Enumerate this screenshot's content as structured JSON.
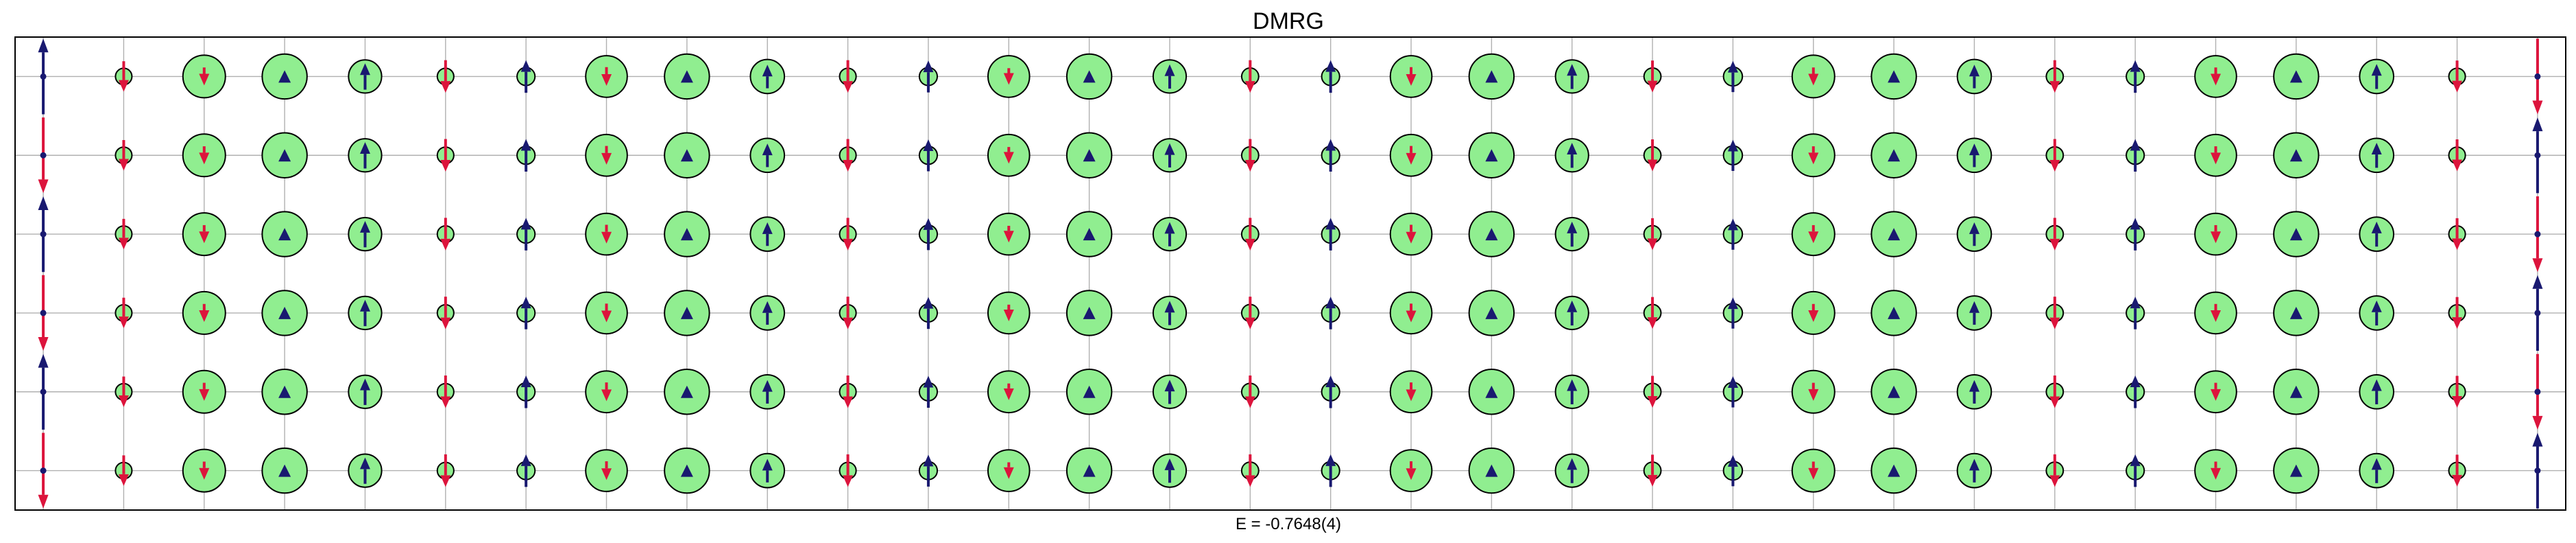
{
  "chart_data": {
    "type": "scatter",
    "title": "DMRG",
    "footer": "E = -0.7648(4)",
    "grid": true,
    "xlim": [
      -0.35,
      31.35
    ],
    "ylim": [
      -0.5,
      5.5
    ],
    "columns": 32,
    "rows": 6,
    "colors": {
      "up_arrow": "#191970",
      "down_arrow": "#dc143c",
      "circle_fill": "#90ee90",
      "circle_edge": "#000000",
      "grid": "#b0b0b0",
      "frame": "#000000",
      "site_dot": "#191970"
    },
    "row_spin_signs": [
      [
        -1,
        1
      ],
      [
        1,
        -1
      ],
      [
        -1,
        1
      ],
      [
        1,
        -1
      ],
      [
        -1,
        1
      ],
      [
        1,
        -1
      ]
    ],
    "column_pattern": [
      {
        "x": 0,
        "m": 0.0,
        "h": 0.98,
        "n": 0.0
      },
      {
        "x": 1,
        "m": 0.44,
        "h": 0.92,
        "n": 0.3
      },
      {
        "x": 2,
        "m": 0.26,
        "h": 0.82,
        "n": 0.9
      },
      {
        "x": 3,
        "m": -0.11,
        "h": 0.65,
        "n": 0.95
      },
      {
        "x": 4,
        "m": -0.38,
        "h": 0.98,
        "n": 0.7
      },
      {
        "x": 5,
        "m": 0.47,
        "h": 0.96,
        "n": 0.35
      },
      {
        "x": 6,
        "m": -0.47,
        "h": 0.98,
        "n": 0.38
      },
      {
        "x": 7,
        "m": 0.27,
        "h": 0.83,
        "n": 0.88
      },
      {
        "x": 8,
        "m": -0.11,
        "h": 0.65,
        "n": 0.95
      },
      {
        "x": 9,
        "m": -0.34,
        "h": 0.98,
        "n": 0.72
      },
      {
        "x": 10,
        "m": 0.47,
        "h": 0.97,
        "n": 0.35
      },
      {
        "x": 11,
        "m": -0.46,
        "h": 0.97,
        "n": 0.38
      },
      {
        "x": 12,
        "m": 0.24,
        "h": 0.8,
        "n": 0.88
      },
      {
        "x": 13,
        "m": -0.11,
        "h": 0.65,
        "n": 0.95
      },
      {
        "x": 14,
        "m": -0.35,
        "h": 0.98,
        "n": 0.7
      },
      {
        "x": 15,
        "m": 0.47,
        "h": 0.97,
        "n": 0.36
      },
      {
        "x": 16,
        "m": -0.47,
        "h": 0.98,
        "n": 0.38
      },
      {
        "x": 17,
        "m": 0.27,
        "h": 0.83,
        "n": 0.88
      },
      {
        "x": 18,
        "m": -0.11,
        "h": 0.65,
        "n": 0.95
      },
      {
        "x": 19,
        "m": -0.36,
        "h": 0.98,
        "n": 0.7
      },
      {
        "x": 20,
        "m": 0.46,
        "h": 0.95,
        "n": 0.36
      },
      {
        "x": 21,
        "m": -0.45,
        "h": 0.95,
        "n": 0.4
      },
      {
        "x": 22,
        "m": 0.26,
        "h": 0.82,
        "n": 0.9
      },
      {
        "x": 23,
        "m": -0.11,
        "h": 0.65,
        "n": 0.95
      },
      {
        "x": 24,
        "m": -0.34,
        "h": 0.98,
        "n": 0.72
      },
      {
        "x": 25,
        "m": 0.47,
        "h": 0.97,
        "n": 0.36
      },
      {
        "x": 26,
        "m": -0.47,
        "h": 0.98,
        "n": 0.38
      },
      {
        "x": 27,
        "m": 0.26,
        "h": 0.82,
        "n": 0.88
      },
      {
        "x": 28,
        "m": -0.12,
        "h": 0.65,
        "n": 0.95
      },
      {
        "x": 29,
        "m": -0.36,
        "h": 0.98,
        "n": 0.72
      },
      {
        "x": 30,
        "m": 0.46,
        "h": 0.95,
        "n": 0.35
      },
      {
        "x": 31,
        "m": 0.0,
        "h": 0.98,
        "n": 0.0
      }
    ]
  }
}
